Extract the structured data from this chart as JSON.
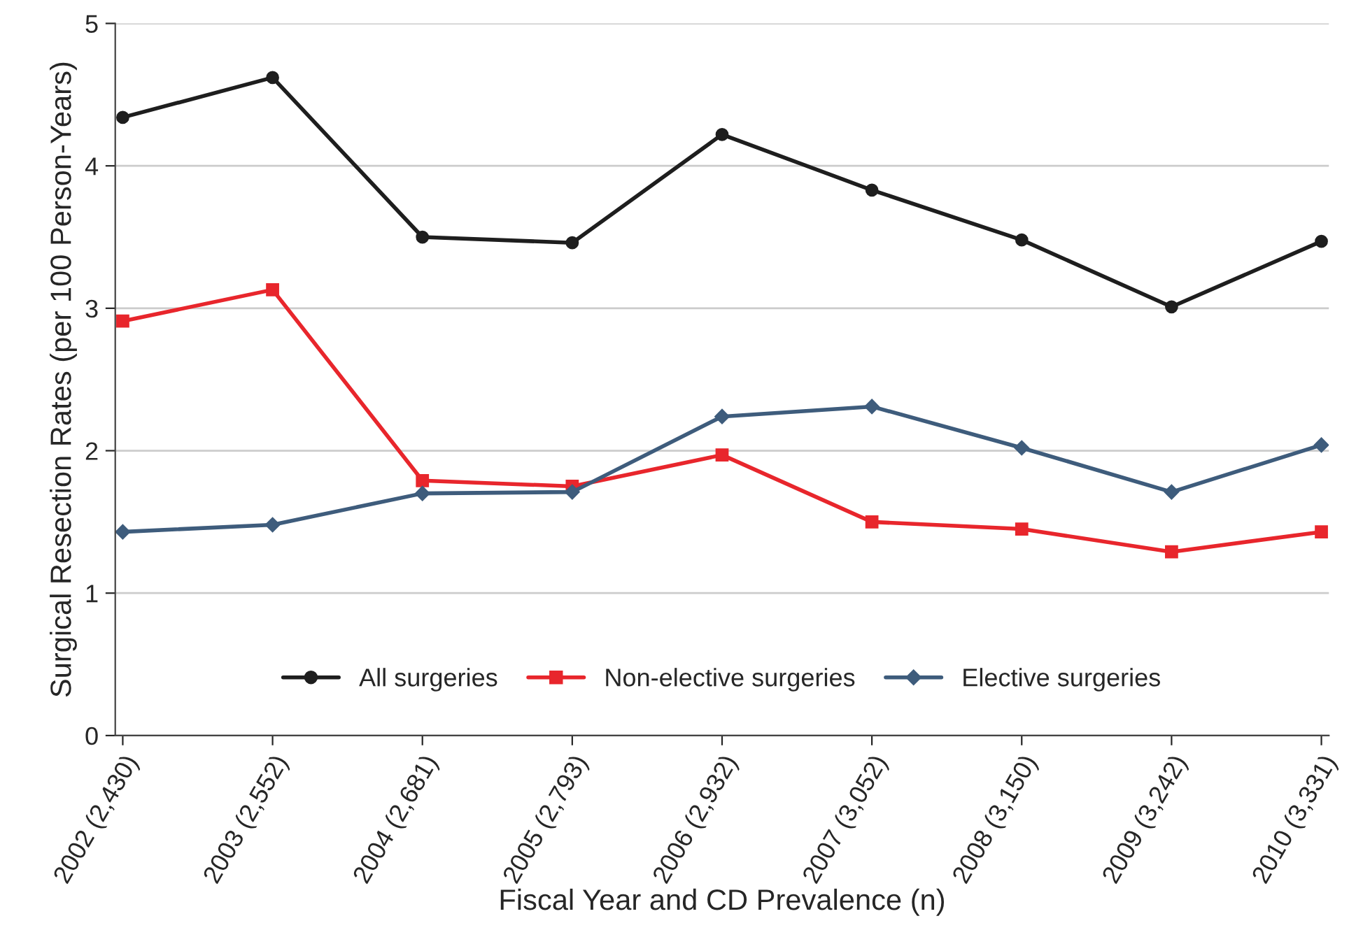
{
  "chart_data": {
    "type": "line",
    "xlabel": "Fiscal Year and CD Prevalence (n)",
    "ylabel": "Surgical Resection Rates (per 100 Person-Years)",
    "categories": [
      "2002 (2,430)",
      "2003 (2,552)",
      "2004 (2,681)",
      "2005 (2,793)",
      "2006 (2,932)",
      "2007 (3,052)",
      "2008 (3,150)",
      "2009 (3,242)",
      "2010 (3,331)"
    ],
    "series": [
      {
        "name": "All surgeries",
        "color": "#1e1e1e",
        "marker": "circle",
        "values": [
          4.34,
          4.62,
          3.5,
          3.46,
          4.22,
          3.83,
          3.48,
          3.01,
          3.47
        ]
      },
      {
        "name": "Non-elective surgeries",
        "color": "#e8262c",
        "marker": "square",
        "values": [
          2.91,
          3.13,
          1.79,
          1.75,
          1.97,
          1.5,
          1.45,
          1.29,
          1.43
        ]
      },
      {
        "name": "Elective surgeries",
        "color": "#3e5c7c",
        "marker": "diamond",
        "values": [
          1.43,
          1.48,
          1.7,
          1.71,
          2.24,
          2.31,
          2.02,
          1.71,
          2.04
        ]
      }
    ],
    "ylim": [
      0,
      5
    ],
    "yticks": [
      0,
      1,
      2,
      3,
      4,
      5
    ],
    "grid": "y",
    "legend": "bottom",
    "line_style": "solid"
  }
}
